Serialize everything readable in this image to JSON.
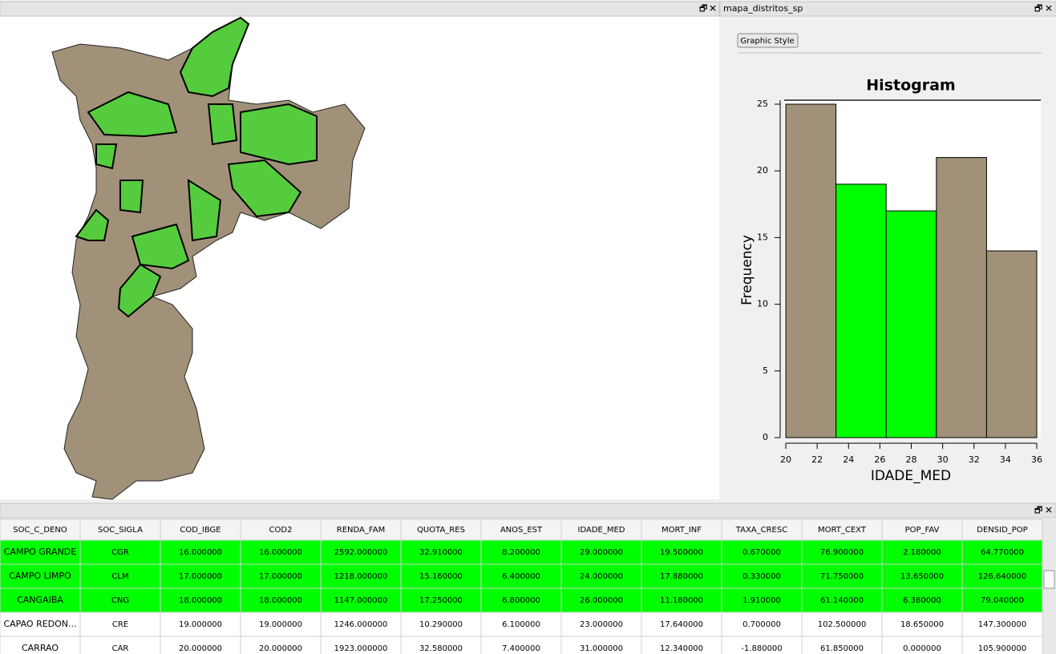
{
  "map_panel": {},
  "chart_panel": {
    "title": "mapa_distritos_sp",
    "button": "Graphic Style"
  },
  "chart_data": {
    "type": "histogram",
    "title": "Histogram",
    "x_label": "IDADE_MED",
    "y_label": "Frequency",
    "bins": [
      20,
      23.2,
      26.4,
      29.6,
      32.8,
      36
    ],
    "counts": [
      25,
      19,
      17,
      21,
      14
    ],
    "colors": [
      "#a09178",
      "#00ff00",
      "#00ff00",
      "#a09178",
      "#a09178"
    ],
    "xlim": [
      20,
      36
    ],
    "xticks": [
      20,
      22,
      24,
      26,
      28,
      30,
      32,
      34,
      36
    ],
    "ylim": [
      0,
      25
    ],
    "yticks": [
      0,
      5,
      10,
      15,
      20,
      25
    ]
  },
  "table": {
    "columns": [
      "SOC_C_DENO",
      "SOC_SIGLA",
      "COD_IBGE",
      "COD2",
      "RENDA_FAM",
      "QUOTA_RES",
      "ANOS_EST",
      "IDADE_MED",
      "MORT_INF",
      "TAXA_CRESC",
      "MORT_CEXT",
      "POP_FAV",
      "DENSID_POP"
    ],
    "rows": [
      [
        "CAMPO GRANDE",
        "CGR",
        "16.000000",
        "16.000000",
        "2592.000000",
        "32.910000",
        "8.200000",
        "29.000000",
        "19.500000",
        "0.670000",
        "76.900000",
        "2.180000",
        "64.770000"
      ],
      [
        "CAMPO LIMPO",
        "CLM",
        "17.000000",
        "17.000000",
        "1218.000000",
        "15.160000",
        "6.400000",
        "24.000000",
        "17.880000",
        "0.330000",
        "71.750000",
        "13.650000",
        "126.640000"
      ],
      [
        "CANGAIBA",
        "CNG",
        "18.000000",
        "18.000000",
        "1147.000000",
        "17.250000",
        "6.800000",
        "26.000000",
        "11.180000",
        "1.910000",
        "61.140000",
        "6.380000",
        "79.040000"
      ],
      [
        "CAPAO REDON...",
        "CRE",
        "19.000000",
        "19.000000",
        "1246.000000",
        "10.290000",
        "6.100000",
        "23.000000",
        "17.640000",
        "0.700000",
        "102.500000",
        "18.650000",
        "147.300000"
      ],
      [
        "CARRAO",
        "CAR",
        "20.000000",
        "20.000000",
        "1923.000000",
        "32.580000",
        "7.400000",
        "31.000000",
        "12.340000",
        "-1.880000",
        "61.850000",
        "0.000000",
        "105.900000"
      ]
    ],
    "selected_rows": [
      0,
      1,
      2
    ],
    "selected_color": "#00ff00"
  }
}
